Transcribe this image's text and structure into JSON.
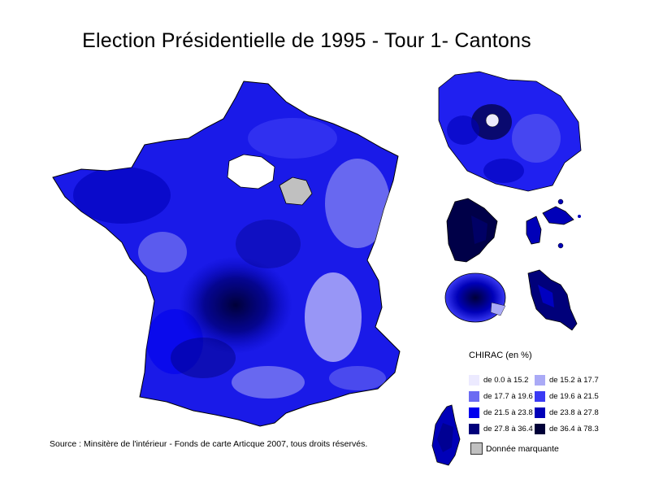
{
  "title": "Election Présidentielle de 1995 - Tour 1- Cantons",
  "legend": {
    "title": "CHIRAC (en %)",
    "classes": [
      {
        "label": "de 0.0 à 15.2",
        "color": "#eceaff"
      },
      {
        "label": "de 15.2 à 17.7",
        "color": "#aaaaf6"
      },
      {
        "label": "de 17.7 à 19.6",
        "color": "#6b6bf2"
      },
      {
        "label": "de 19.6 à 21.5",
        "color": "#3a3af4"
      },
      {
        "label": "de 21.5 à 23.8",
        "color": "#0000ee"
      },
      {
        "label": "de 23.8 à 27.8",
        "color": "#0000b8"
      },
      {
        "label": "de 27.8 à 36.4",
        "color": "#00007a"
      },
      {
        "label": "de 36.4 à 78.3",
        "color": "#000038"
      }
    ],
    "missing": {
      "label": "Donnée marquante",
      "color": "#c0c0c0"
    }
  },
  "source": "Source : Minsitère de l'intérieur - Fonds de carte Articque 2007, tous droits réservés."
}
